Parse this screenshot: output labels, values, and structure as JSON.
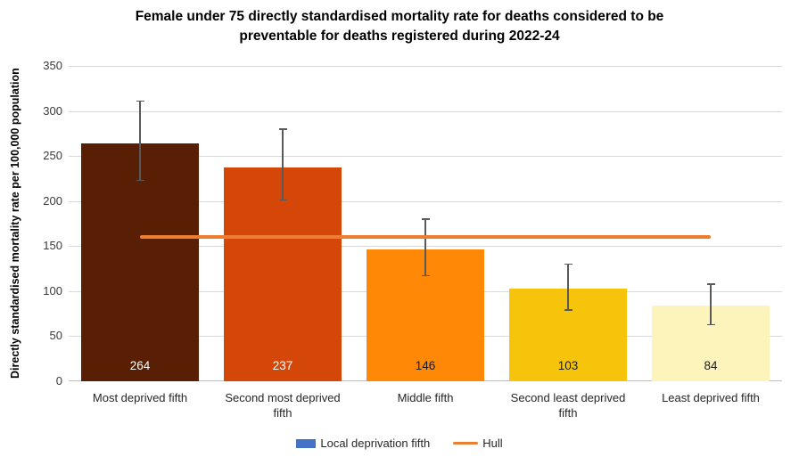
{
  "title": {
    "line1": "Female under 75 directly standardised mortality rate for deaths considered to be",
    "line2": "preventable for deaths registered during 2022-24"
  },
  "chart_data": {
    "type": "bar",
    "title": "Female under 75 directly standardised mortality rate for deaths considered to be preventable for deaths registered during 2022-24",
    "ylabel": "Directly standardised mortality rate per 100,000 population",
    "xlabel": "",
    "ylim": [
      0,
      350
    ],
    "y_ticks": [
      0,
      50,
      100,
      150,
      200,
      250,
      300,
      350
    ],
    "grid": true,
    "legend_position": "bottom",
    "categories": [
      "Most deprived fifth",
      "Second most deprived fifth",
      "Middle fifth",
      "Second least deprived fifth",
      "Least deprived fifth"
    ],
    "values": [
      264,
      237,
      146,
      103,
      84
    ],
    "bar_colors": [
      "#581F05",
      "#D44708",
      "#FF8806",
      "#F6C50B",
      "#FCF4BB"
    ],
    "value_label_colors": [
      "#FFFFFF",
      "#FFFFFF",
      "#1A1A1A",
      "#1A1A1A",
      "#1A1A1A"
    ],
    "error_bars": [
      {
        "low": 223,
        "high": 311
      },
      {
        "low": 201,
        "high": 280
      },
      {
        "low": 117,
        "high": 180
      },
      {
        "low": 79,
        "high": 130
      },
      {
        "low": 63,
        "high": 108
      }
    ],
    "error_bar_color": "#595959",
    "hull_line": {
      "label": "Hull",
      "value": 160,
      "color": "#ED7D31"
    },
    "legend": [
      {
        "label": "Local deprivation fifth",
        "type": "swatch",
        "color": "#4472C4"
      },
      {
        "label": "Hull",
        "type": "line",
        "color": "#ED7D31"
      }
    ],
    "gridline_color": "#D9D9D9",
    "axis_line_color": "#BFBFBF"
  }
}
